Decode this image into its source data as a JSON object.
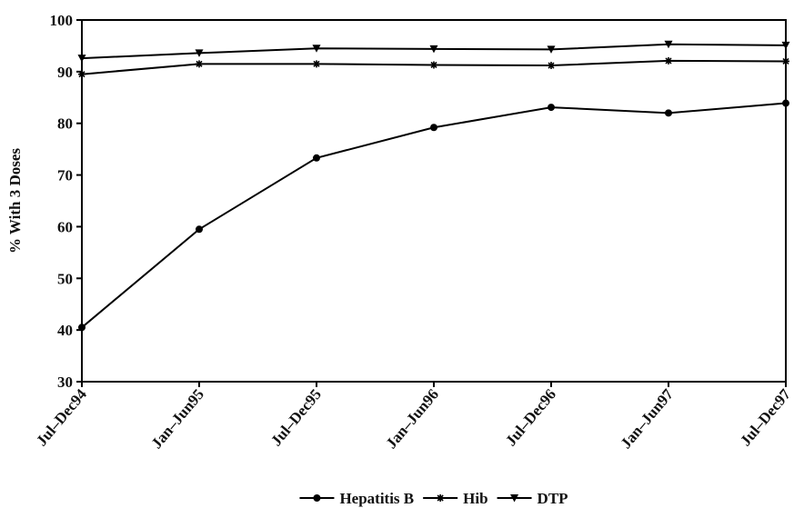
{
  "chart_data": {
    "type": "line",
    "categories": [
      "Jul–Dec94",
      "Jan–Jun95",
      "Jul–Dec95",
      "Jan–Jun96",
      "Jul–Dec96",
      "Jan–Jun97",
      "Jul–Dec97"
    ],
    "ylabel": "% With 3 Doses",
    "xlabel": "",
    "ylim": [
      30,
      100
    ],
    "yticks": [
      30,
      40,
      50,
      60,
      70,
      80,
      90,
      100
    ],
    "grid": false,
    "legend": "bottom",
    "series": [
      {
        "name": "Hepatitis B",
        "marker": "circle",
        "values": [
          40.5,
          59.5,
          73.3,
          79.2,
          83.1,
          82.0,
          83.9
        ]
      },
      {
        "name": "Hib",
        "marker": "asterisk",
        "values": [
          89.5,
          91.5,
          91.5,
          91.3,
          91.2,
          92.1,
          92.0
        ]
      },
      {
        "name": "DTP",
        "marker": "triangle-down",
        "values": [
          92.6,
          93.6,
          94.5,
          94.4,
          94.3,
          95.3,
          95.1
        ]
      }
    ]
  }
}
